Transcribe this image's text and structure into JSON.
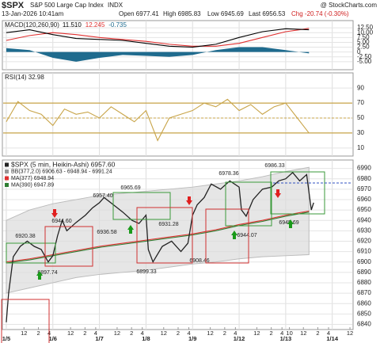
{
  "header": {
    "symbol": "$SPX",
    "name": "S&P 500 Large Cap Index",
    "exchange": "INDX",
    "source": "@ StockCharts.com",
    "date": "13-Jan-2026 10:41am",
    "open": "Open 6977.41",
    "high": "High 6985.83",
    "low": "Low 6945.69",
    "last": "Last 6956.53",
    "chg": "Chg -20.74 (-0.30%)"
  },
  "chart_data": [
    {
      "type": "line",
      "title": "MACD(120,260,90)",
      "x": [
        0,
        0.5,
        1,
        1.5,
        2,
        2.5,
        3,
        3.5,
        4,
        4.5,
        5,
        5.5,
        6,
        6.5
      ],
      "series": [
        {
          "name": "11.510",
          "color": "#000000",
          "values": [
            10,
            11.5,
            9,
            7,
            6.5,
            6,
            4.5,
            3,
            2.5,
            4,
            7.5,
            10.5,
            12,
            11.5
          ]
        },
        {
          "name": "12.245",
          "color": "#e03030",
          "values": [
            6,
            8.5,
            10,
            9,
            7.5,
            6.5,
            5.5,
            4,
            3,
            3,
            4.5,
            7.5,
            10.5,
            12.2
          ]
        },
        {
          "name": "-0.735",
          "color": "#1f6b8e",
          "style": "area",
          "values": [
            2,
            1,
            -3,
            -5,
            -3,
            -1.5,
            -2,
            -2.5,
            -1.5,
            1,
            2.5,
            2.5,
            1,
            -0.7
          ]
        }
      ],
      "ylim": [
        -7.5,
        15
      ],
      "yticks": [
        {
          "value": 12.5,
          "label": "12.50"
        },
        {
          "value": 10,
          "label": "10.00"
        },
        {
          "value": 7.5,
          "label": "7.50"
        },
        {
          "value": 5,
          "label": "5.00"
        },
        {
          "value": 2.5,
          "label": "2.50"
        },
        0,
        {
          "value": -2.5,
          "label": "-2.50"
        },
        {
          "value": -5,
          "label": "-5.00"
        }
      ],
      "grid": true
    },
    {
      "type": "line",
      "title": "RSI(14) 32.98",
      "x": [
        0,
        0.25,
        0.5,
        0.75,
        1,
        1.25,
        1.5,
        1.75,
        2,
        2.25,
        2.5,
        2.75,
        3,
        3.25,
        3.5,
        3.75,
        4,
        4.25,
        4.5,
        4.75,
        5,
        5.25,
        5.5,
        5.75,
        6,
        6.25,
        6.5
      ],
      "series": [
        {
          "color": "#c8a448",
          "values": [
            45,
            72,
            60,
            55,
            40,
            62,
            55,
            58,
            50,
            65,
            55,
            45,
            60,
            20,
            50,
            55,
            60,
            70,
            65,
            75,
            60,
            68,
            55,
            65,
            70,
            50,
            30
          ]
        }
      ],
      "ylim": [
        -5,
        105
      ],
      "yticks": [
        10,
        30,
        50,
        70,
        90
      ],
      "bands": [
        30,
        70
      ],
      "band_color": "#c8a448",
      "midline": 50,
      "grid": true
    },
    {
      "type": "line",
      "x": [
        0,
        0.5,
        1,
        1.5,
        2,
        2.5,
        3,
        3.5,
        4,
        4.5,
        5,
        5.5,
        6,
        6.5
      ],
      "band": {
        "name": "BB(377,2.0) 6906.63 - 6948.94 - 6991.24",
        "color": "#dcdcdc",
        "upper": [
          6940,
          6950,
          6956,
          6960,
          6964,
          6966,
          6968,
          6970,
          6972,
          6975,
          6978,
          6982,
          6987,
          6991
        ],
        "lower": [
          6870,
          6875,
          6880,
          6885,
          6888,
          6890,
          6892,
          6895,
          6898,
          6900,
          6903,
          6905,
          6906,
          6907
        ]
      },
      "series": [
        {
          "name": "$SPX (5 min, Heikin-Ashi) 6957.60",
          "color": "#222222",
          "x": [
            0,
            0.05,
            0.15,
            0.3,
            0.45,
            0.6,
            0.75,
            0.9,
            1,
            1.1,
            1.2,
            1.3,
            1.5,
            1.7,
            1.85,
            2,
            2.1,
            2.3,
            2.5,
            2.7,
            2.85,
            3,
            3.05,
            3.15,
            3.35,
            3.55,
            3.75,
            3.9,
            4,
            4.1,
            4.25,
            4.4,
            4.6,
            4.8,
            5,
            5.05,
            5.15,
            5.3,
            5.5,
            5.7,
            5.85,
            6,
            6.15,
            6.3,
            6.45,
            6.55,
            6.6
          ],
          "values": [
            6842,
            6870,
            6905,
            6915,
            6920,
            6915,
            6912,
            6900,
            6906,
            6925,
            6940,
            6930,
            6938,
            6945,
            6952,
            6957,
            6962,
            6955,
            6948,
            6940,
            6937,
            6945,
            6912,
            6900,
            6915,
            6920,
            6910,
            6918,
            6945,
            6955,
            6962,
            6975,
            6970,
            6978,
            6972,
            6950,
            6944,
            6960,
            6970,
            6972,
            6978,
            6980,
            6986,
            6978,
            6984,
            6950,
            6957
          ]
        },
        {
          "name": "MA(377) 6948.94",
          "color": "#e03030",
          "values": [
            6900,
            6903,
            6907,
            6911,
            6915,
            6918,
            6921,
            6924,
            6927,
            6931,
            6936,
            6940,
            6945,
            6949
          ]
        },
        {
          "name": "MA(390) 6947.89",
          "color": "#2e7d32",
          "values": [
            6899,
            6902,
            6906,
            6910,
            6914,
            6917,
            6920,
            6923,
            6926,
            6930,
            6935,
            6939,
            6944,
            6948
          ]
        }
      ],
      "ylim": [
        6835,
        6995
      ],
      "yticks": [
        6840,
        6850,
        6860,
        6870,
        6880,
        6890,
        6900,
        6910,
        6920,
        6930,
        6940,
        6950,
        6960,
        6970,
        6980,
        6990
      ],
      "grid": true,
      "annotations": [
        "6920.38",
        "6897.74",
        "6944.60",
        "6957.40",
        "6936.58",
        "6965.69",
        "6899.33",
        "6931.28",
        "6908.46",
        "6978.36",
        "6944.07",
        "6986.33",
        "6945.69"
      ],
      "xlim": [
        -0.05,
        7.43
      ],
      "xticks": [
        {
          "value": 0,
          "label": "1/5"
        },
        {
          "value": 1,
          "label": "1/6"
        },
        {
          "value": 2,
          "label": "1/7"
        },
        {
          "value": 3,
          "label": "1/8"
        },
        {
          "value": 4,
          "label": "1/9"
        },
        {
          "value": 5,
          "label": "1/12"
        },
        {
          "value": 6,
          "label": "1/13"
        },
        {
          "value": 7,
          "label": "1/14"
        }
      ],
      "minor_xticks": [
        {
          "value": 0.38,
          "label": "12"
        },
        {
          "value": 0.69,
          "label": "2"
        },
        {
          "value": 0.92,
          "label": "4"
        },
        {
          "value": 1.38,
          "label": "12"
        },
        {
          "value": 1.69,
          "label": "2"
        },
        {
          "value": 1.92,
          "label": "4"
        },
        {
          "value": 2.38,
          "label": "12"
        },
        {
          "value": 2.69,
          "label": "2"
        },
        {
          "value": 2.92,
          "label": "4"
        },
        {
          "value": 3.38,
          "label": "12"
        },
        {
          "value": 3.69,
          "label": "2"
        },
        {
          "value": 3.92,
          "label": "4"
        },
        {
          "value": 4.38,
          "label": "12"
        },
        {
          "value": 4.69,
          "label": "2"
        },
        {
          "value": 4.92,
          "label": "4"
        },
        {
          "value": 5.38,
          "label": "12"
        },
        {
          "value": 5.69,
          "label": "2"
        },
        {
          "value": 5.92,
          "label": "4"
        },
        {
          "value": 6.08,
          "label": "10"
        },
        {
          "value": 6.38,
          "label": "12"
        },
        {
          "value": 6.69,
          "label": "2"
        },
        {
          "value": 6.92,
          "label": "4"
        },
        {
          "value": 7.38,
          "label": "12"
        }
      ]
    }
  ]
}
